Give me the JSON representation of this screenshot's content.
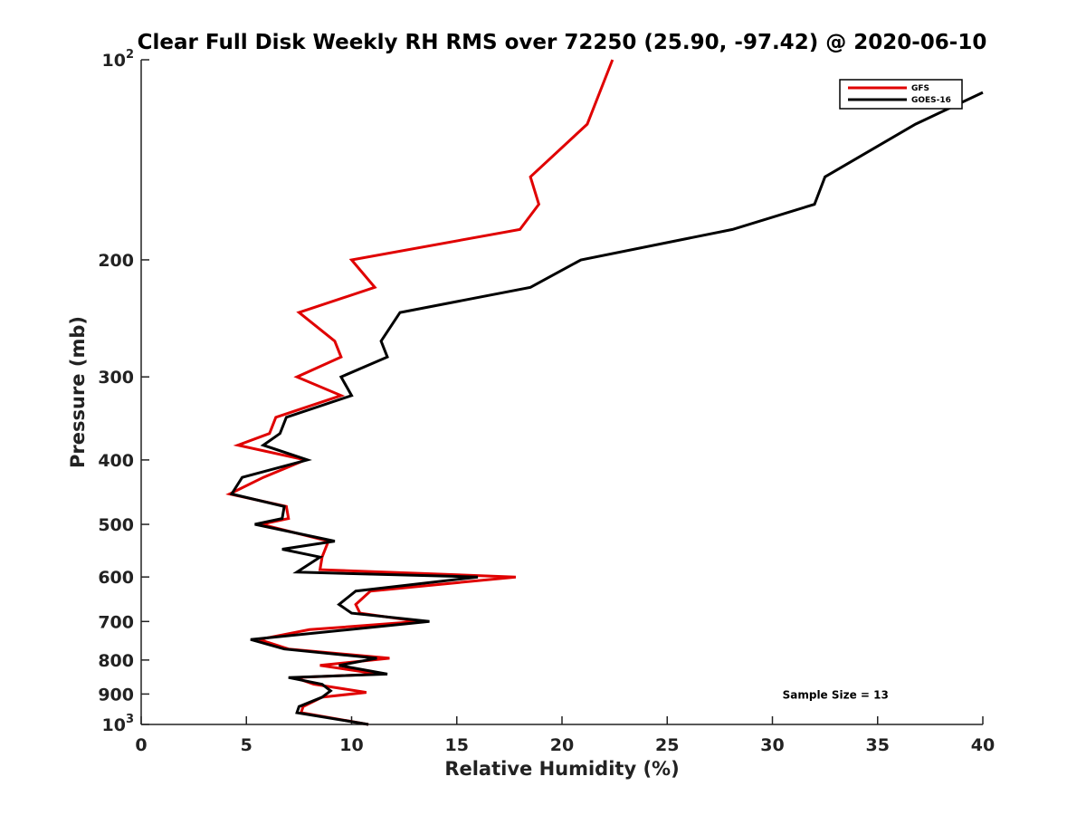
{
  "chart_data": {
    "type": "line",
    "title": "Clear Full Disk Weekly RH RMS over 72250 (25.90, -97.42) @ 2020-06-10",
    "xlabel": "Relative Humidity (%)",
    "ylabel": "Pressure (mb)",
    "xlim": [
      0,
      40
    ],
    "ylim": [
      100,
      1000
    ],
    "y_scale": "log",
    "y_reversed": true,
    "x_ticks": [
      0,
      5,
      10,
      15,
      20,
      25,
      30,
      35,
      40
    ],
    "x_tick_labels": [
      "0",
      "5",
      "10",
      "15",
      "20",
      "25",
      "30",
      "35",
      "40"
    ],
    "y_ticks": [
      100,
      200,
      300,
      400,
      500,
      600,
      700,
      800,
      900,
      1000
    ],
    "y_tick_labels": [
      "10²",
      "200",
      "300",
      "400",
      "500",
      "600",
      "700",
      "800",
      "900",
      "10³"
    ],
    "grid": false,
    "legend_position": "top-right",
    "series": [
      {
        "name": "GFS",
        "color": "#e00000",
        "points": [
          [
            22.4,
            100
          ],
          [
            21.2,
            125
          ],
          [
            18.5,
            150
          ],
          [
            18.9,
            165
          ],
          [
            18.0,
            180
          ],
          [
            10.0,
            200
          ],
          [
            11.1,
            220
          ],
          [
            7.5,
            240
          ],
          [
            9.2,
            265
          ],
          [
            9.5,
            280
          ],
          [
            7.4,
            300
          ],
          [
            9.5,
            320
          ],
          [
            6.4,
            345
          ],
          [
            6.1,
            365
          ],
          [
            4.6,
            380
          ],
          [
            7.8,
            400
          ],
          [
            5.8,
            425
          ],
          [
            4.2,
            450
          ],
          [
            6.9,
            470
          ],
          [
            7.0,
            490
          ],
          [
            5.7,
            500
          ],
          [
            8.9,
            530
          ],
          [
            8.6,
            560
          ],
          [
            8.5,
            585
          ],
          [
            17.8,
            600
          ],
          [
            10.9,
            630
          ],
          [
            10.2,
            660
          ],
          [
            10.4,
            680
          ],
          [
            13.2,
            700
          ],
          [
            8.0,
            720
          ],
          [
            5.6,
            745
          ],
          [
            7.0,
            770
          ],
          [
            11.8,
            795
          ],
          [
            8.5,
            815
          ],
          [
            11.3,
            840
          ],
          [
            7.3,
            850
          ],
          [
            8.2,
            870
          ],
          [
            10.7,
            895
          ],
          [
            8.6,
            910
          ],
          [
            7.7,
            940
          ],
          [
            7.6,
            960
          ],
          [
            10.8,
            1000
          ]
        ]
      },
      {
        "name": "GOES-16",
        "color": "#000000",
        "points": [
          [
            40.0,
            112
          ],
          [
            36.8,
            125
          ],
          [
            32.5,
            150
          ],
          [
            32.0,
            165
          ],
          [
            28.1,
            180
          ],
          [
            20.9,
            200
          ],
          [
            18.5,
            220
          ],
          [
            12.3,
            240
          ],
          [
            11.4,
            265
          ],
          [
            11.7,
            280
          ],
          [
            9.5,
            300
          ],
          [
            10.0,
            320
          ],
          [
            6.9,
            345
          ],
          [
            6.6,
            365
          ],
          [
            5.8,
            380
          ],
          [
            7.9,
            400
          ],
          [
            4.8,
            425
          ],
          [
            4.3,
            450
          ],
          [
            6.8,
            470
          ],
          [
            6.7,
            490
          ],
          [
            5.4,
            500
          ],
          [
            9.2,
            530
          ],
          [
            6.7,
            545
          ],
          [
            8.5,
            560
          ],
          [
            7.4,
            590
          ],
          [
            16.0,
            600
          ],
          [
            10.2,
            630
          ],
          [
            9.4,
            660
          ],
          [
            10.0,
            680
          ],
          [
            13.7,
            700
          ],
          [
            5.2,
            745
          ],
          [
            6.8,
            770
          ],
          [
            11.2,
            795
          ],
          [
            9.4,
            815
          ],
          [
            11.7,
            840
          ],
          [
            7.0,
            850
          ],
          [
            8.6,
            870
          ],
          [
            9.0,
            890
          ],
          [
            8.6,
            910
          ],
          [
            7.5,
            940
          ],
          [
            7.4,
            960
          ],
          [
            10.8,
            1000
          ]
        ]
      }
    ],
    "annotations": [
      {
        "text": "Sample Size = 13",
        "x": 33,
        "y": 900
      }
    ]
  }
}
